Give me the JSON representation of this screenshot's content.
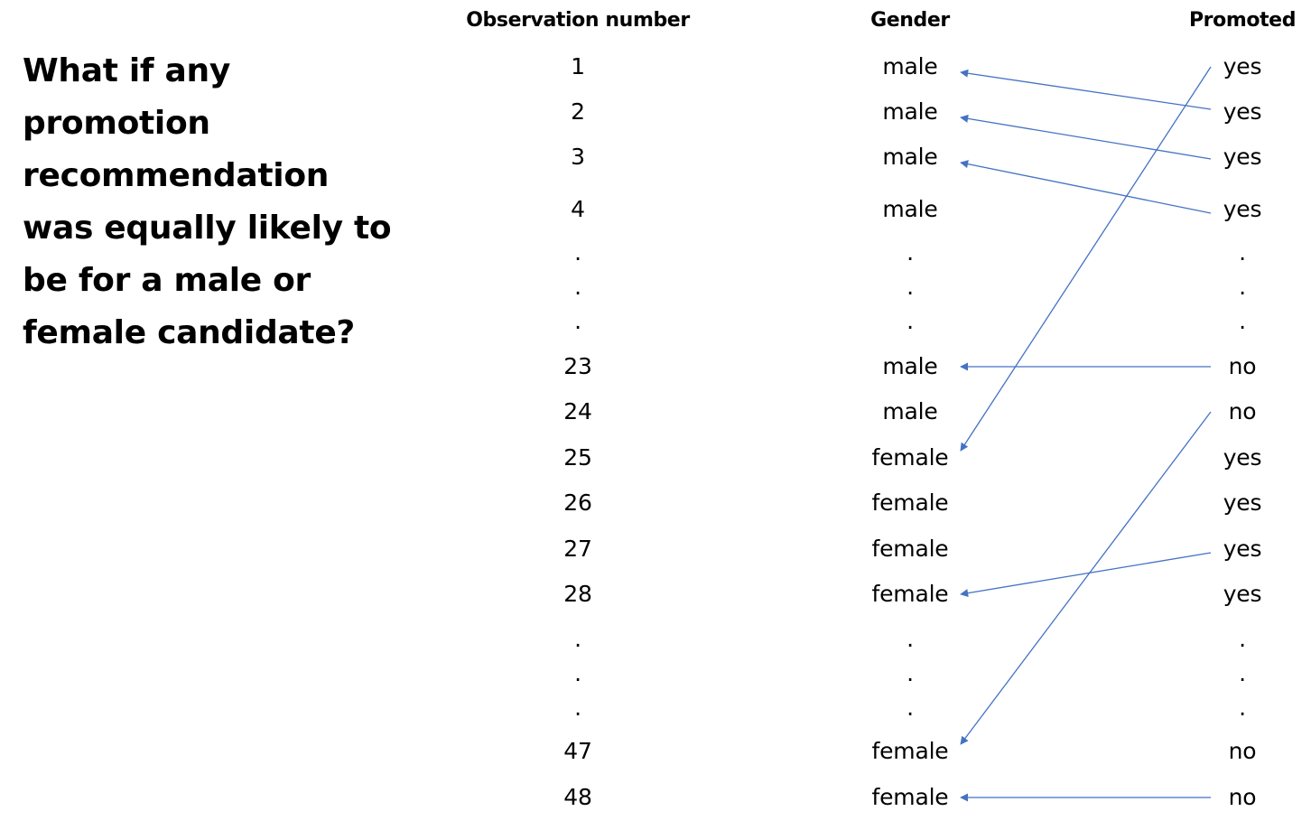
{
  "question": "What if any promotion recommendation was equally likely to be for a male or female candidate?",
  "headers": {
    "obs": "Observation number",
    "gender": "Gender",
    "promoted": "Promoted"
  },
  "rows": [
    {
      "obs": "1",
      "gender": "male",
      "promoted": "yes"
    },
    {
      "obs": "2",
      "gender": "male",
      "promoted": "yes"
    },
    {
      "obs": "3",
      "gender": "male",
      "promoted": "yes"
    },
    {
      "obs": "4",
      "gender": "male",
      "promoted": "yes"
    },
    {
      "obs": ".",
      "gender": ".",
      "promoted": "."
    },
    {
      "obs": ".",
      "gender": ".",
      "promoted": "."
    },
    {
      "obs": ".",
      "gender": ".",
      "promoted": "."
    },
    {
      "obs": "23",
      "gender": "male",
      "promoted": "no"
    },
    {
      "obs": "24",
      "gender": "male",
      "promoted": "no"
    },
    {
      "obs": "25",
      "gender": "female",
      "promoted": "yes"
    },
    {
      "obs": "26",
      "gender": "female",
      "promoted": "yes"
    },
    {
      "obs": "27",
      "gender": "female",
      "promoted": "yes"
    },
    {
      "obs": "28",
      "gender": "female",
      "promoted": "yes"
    },
    {
      "obs": ".",
      "gender": ".",
      "promoted": "."
    },
    {
      "obs": ".",
      "gender": ".",
      "promoted": "."
    },
    {
      "obs": ".",
      "gender": ".",
      "promoted": "."
    },
    {
      "obs": "47",
      "gender": "female",
      "promoted": "no"
    },
    {
      "obs": "48",
      "gender": "female",
      "promoted": "no"
    }
  ],
  "arrow_color": "#4472C4",
  "arrows": [
    {
      "from_row": 1,
      "to_row": 0
    },
    {
      "from_row": 2,
      "to_row": 1
    },
    {
      "from_row": 3,
      "to_row": 2
    },
    {
      "from_row": 0,
      "to_row": 9
    },
    {
      "from_row": 7,
      "to_row": 7
    },
    {
      "from_row": 8,
      "to_row": 16
    },
    {
      "from_row": 11,
      "to_row": 12
    },
    {
      "from_row": 17,
      "to_row": 17
    }
  ]
}
